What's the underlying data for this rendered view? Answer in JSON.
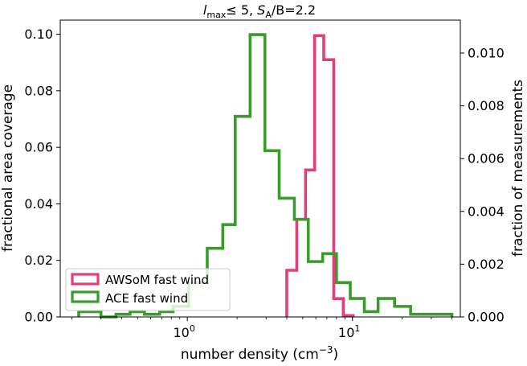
{
  "chart_data": {
    "type": "histogram",
    "title_parts": {
      "l": "l",
      "l_sub": "max",
      "le_n": "≤ 5, ",
      "s": "S",
      "s_sub": "A",
      "rest": "/B=2.2"
    },
    "xlabel_main": "number density (cm",
    "xlabel_exp": "−3",
    "xlabel_close": ")",
    "ylabel_left": "fractional area coverage",
    "ylabel_right": "fraction of measurements",
    "xscale": "log",
    "xlim": [
      0.17,
      45
    ],
    "ylim_left": [
      0,
      0.105
    ],
    "ylim_right": [
      0,
      0.01125
    ],
    "x_ticks": [
      {
        "value": 1,
        "base": "10",
        "exp": "0"
      },
      {
        "value": 10,
        "base": "10",
        "exp": "1"
      }
    ],
    "y_ticks_left": [
      "0.00",
      "0.02",
      "0.04",
      "0.06",
      "0.08",
      "0.10"
    ],
    "y_ticks_left_values": [
      0,
      0.02,
      0.04,
      0.06,
      0.08,
      0.1
    ],
    "y_ticks_right": [
      "0.000",
      "0.002",
      "0.004",
      "0.006",
      "0.008",
      "0.010"
    ],
    "y_ticks_right_values": [
      0,
      0.002,
      0.004,
      0.006,
      0.008,
      0.01
    ],
    "legend_position": "lower-left",
    "series": [
      {
        "name": "AWSoM fast wind",
        "color": "#e0407a",
        "axis": "left",
        "bin_edges": [
          4.0,
          4.6,
          5.2,
          5.9,
          6.7,
          7.7,
          8.8,
          10.1
        ],
        "values": [
          0.0165,
          0.0345,
          0.052,
          0.0995,
          0.091,
          0.0065,
          0.0005
        ]
      },
      {
        "name": "ACE fast wind",
        "color": "#3a9a2c",
        "axis": "right",
        "bin_edges": [
          0.22,
          0.3,
          0.37,
          0.45,
          0.55,
          0.68,
          0.82,
          1.02,
          1.32,
          1.64,
          1.95,
          2.4,
          2.95,
          3.6,
          4.45,
          5.4,
          6.6,
          8.0,
          9.7,
          11.8,
          14.3,
          18.0,
          22.5,
          28.0,
          34.5,
          40.0
        ],
        "values": [
          0.0002,
          0,
          0.0001,
          0.0002,
          0.0001,
          0.0002,
          0.0004,
          0.0013,
          0.0026,
          0.0035,
          0.0076,
          0.0107,
          0.0063,
          0.0045,
          0.0037,
          0.0021,
          0.0024,
          0.0013,
          0.0007,
          0.0002,
          0.0007,
          0.0004,
          0.0001,
          0.0001,
          0.0001
        ]
      }
    ]
  }
}
